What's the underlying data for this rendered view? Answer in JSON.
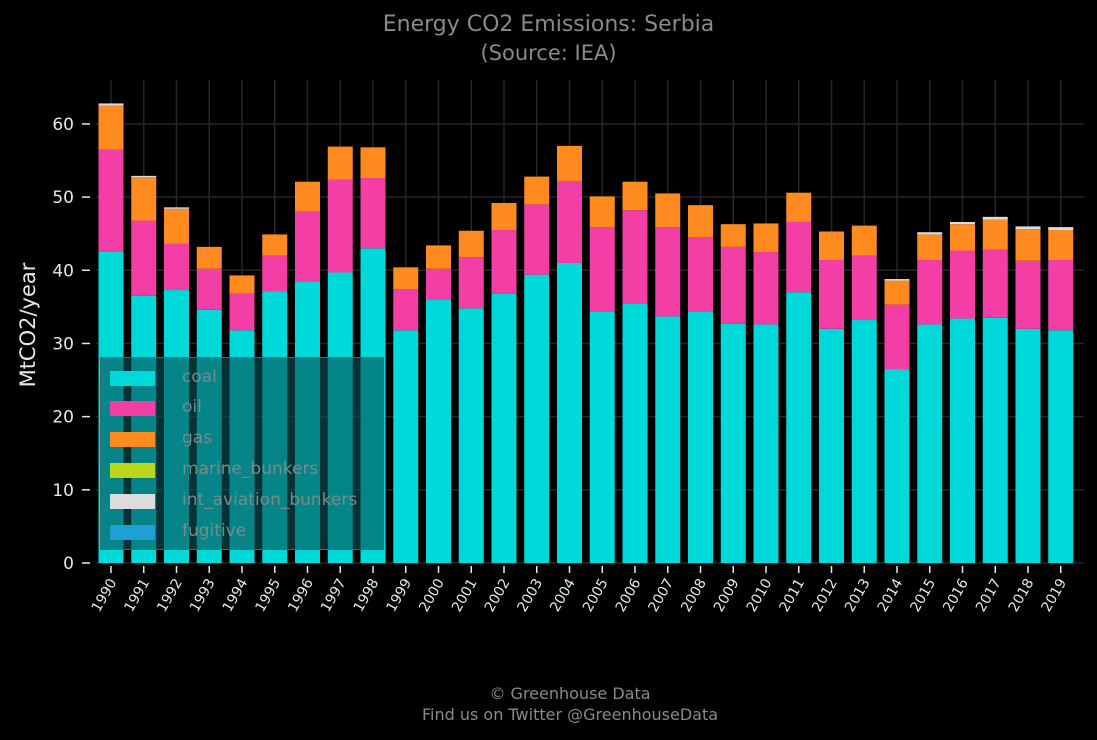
{
  "chart_data": {
    "type": "bar",
    "stacked": true,
    "title": "Energy CO2 Emissions: Serbia",
    "subtitle": "(Source: IEA)",
    "ylabel": "MtCO2/year",
    "xlabel": "",
    "ylim": [
      0,
      66
    ],
    "yticks": [
      0,
      10,
      20,
      30,
      40,
      50,
      60
    ],
    "grid": true,
    "legend_position": "lower-left",
    "categories": [
      "1990",
      "1991",
      "1992",
      "1993",
      "1994",
      "1995",
      "1996",
      "1997",
      "1998",
      "1999",
      "2000",
      "2001",
      "2002",
      "2003",
      "2004",
      "2005",
      "2006",
      "2007",
      "2008",
      "2009",
      "2010",
      "2011",
      "2012",
      "2013",
      "2014",
      "2015",
      "2016",
      "2017",
      "2018",
      "2019"
    ],
    "series": [
      {
        "name": "coal",
        "color": "#00d9d9",
        "values": [
          42.5,
          36.5,
          37.3,
          34.6,
          31.8,
          37.1,
          38.5,
          39.7,
          43.0,
          31.8,
          36.0,
          34.8,
          36.8,
          39.4,
          41.0,
          34.3,
          35.5,
          33.7,
          34.3,
          32.7,
          32.6,
          37.0,
          32.0,
          33.2,
          26.5,
          32.6,
          33.4,
          33.5,
          32.0,
          31.8
        ]
      },
      {
        "name": "oil",
        "color": "#f23ea5",
        "values": [
          14.0,
          10.3,
          6.3,
          5.6,
          5.0,
          4.9,
          9.5,
          12.7,
          9.6,
          5.6,
          4.2,
          7.0,
          8.7,
          9.6,
          11.2,
          11.6,
          12.7,
          12.2,
          10.2,
          10.5,
          9.9,
          9.6,
          9.4,
          8.8,
          8.8,
          8.8,
          9.3,
          9.3,
          9.3,
          9.6
        ]
      },
      {
        "name": "gas",
        "color": "#ff8a1f",
        "values": [
          6.0,
          5.9,
          4.8,
          3.0,
          2.5,
          2.9,
          4.1,
          4.5,
          4.2,
          3.0,
          3.2,
          3.6,
          3.7,
          3.8,
          4.8,
          4.2,
          3.9,
          4.6,
          4.4,
          3.1,
          3.9,
          4.0,
          3.9,
          4.1,
          3.3,
          3.5,
          3.6,
          4.1,
          4.3,
          4.1
        ]
      },
      {
        "name": "marine_bunkers",
        "color": "#bcd61c",
        "values": [
          0,
          0,
          0,
          0,
          0,
          0,
          0,
          0,
          0,
          0,
          0,
          0,
          0,
          0,
          0,
          0,
          0,
          0,
          0,
          0,
          0,
          0,
          0,
          0,
          0,
          0,
          0,
          0,
          0,
          0
        ]
      },
      {
        "name": "int_aviation_bunkers",
        "color": "#dcdcdc",
        "values": [
          0.3,
          0.2,
          0.2,
          0,
          0,
          0,
          0,
          0,
          0,
          0,
          0,
          0,
          0,
          0,
          0,
          0,
          0,
          0,
          0,
          0,
          0,
          0,
          0,
          0,
          0.2,
          0.3,
          0.3,
          0.4,
          0.4,
          0.4
        ]
      },
      {
        "name": "fugitive",
        "color": "#1f9fd6",
        "values": [
          0,
          0,
          0,
          0,
          0,
          0,
          0,
          0,
          0,
          0,
          0,
          0,
          0,
          0,
          0,
          0,
          0,
          0,
          0,
          0,
          0,
          0,
          0,
          0,
          0,
          0,
          0,
          0,
          0,
          0
        ]
      }
    ]
  },
  "colors": {
    "background": "#000000",
    "grid": "#262626",
    "axis_text": "#e6e6e6",
    "title_text": "#8a8a8a",
    "legend_background": "#0a5055",
    "legend_border": "#3d6d70"
  },
  "footer": {
    "copyright": "© Greenhouse Data",
    "twitter": "Find us on Twitter @GreenhouseData"
  }
}
